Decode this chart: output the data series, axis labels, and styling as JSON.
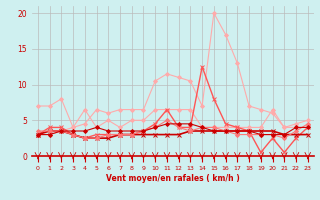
{
  "x": [
    0,
    1,
    2,
    3,
    4,
    5,
    6,
    7,
    8,
    9,
    10,
    11,
    12,
    13,
    14,
    15,
    16,
    17,
    18,
    19,
    20,
    21,
    22,
    23
  ],
  "series": [
    {
      "color": "#ffaaaa",
      "lw": 0.8,
      "marker": "D",
      "markersize": 2.0,
      "values": [
        3.0,
        3.0,
        3.5,
        4.0,
        4.5,
        6.5,
        6.0,
        6.5,
        6.5,
        6.5,
        10.5,
        11.5,
        11.0,
        10.5,
        7.0,
        20.0,
        17.0,
        13.0,
        7.0,
        6.5,
        6.0,
        4.0,
        4.5,
        5.0
      ]
    },
    {
      "color": "#ffaaaa",
      "lw": 0.8,
      "marker": "D",
      "markersize": 2.0,
      "values": [
        7.0,
        7.0,
        8.0,
        4.0,
        6.5,
        4.0,
        5.0,
        4.0,
        5.0,
        5.0,
        6.5,
        6.5,
        6.5,
        6.5,
        4.0,
        4.0,
        4.0,
        4.0,
        4.0,
        4.0,
        6.5,
        4.0,
        4.0,
        4.0
      ]
    },
    {
      "color": "#ff5555",
      "lw": 1.0,
      "marker": "x",
      "markersize": 3.0,
      "values": [
        3.0,
        4.0,
        4.0,
        3.0,
        2.5,
        3.0,
        3.0,
        3.0,
        3.0,
        3.5,
        4.5,
        6.5,
        4.0,
        4.0,
        12.5,
        8.0,
        4.5,
        4.0,
        3.5,
        0.5,
        2.5,
        0.5,
        2.5,
        4.0
      ]
    },
    {
      "color": "#cc0000",
      "lw": 1.2,
      "marker": "x",
      "markersize": 2.5,
      "values": [
        3.0,
        3.5,
        3.5,
        3.0,
        2.5,
        2.5,
        2.5,
        3.0,
        3.0,
        3.0,
        3.0,
        3.0,
        3.0,
        3.5,
        3.5,
        3.5,
        3.5,
        3.5,
        3.5,
        3.5,
        3.5,
        3.0,
        3.0,
        3.0
      ]
    },
    {
      "color": "#ff7777",
      "lw": 0.8,
      "marker": "D",
      "markersize": 2.0,
      "values": [
        3.5,
        3.5,
        3.5,
        3.0,
        2.5,
        2.5,
        3.0,
        3.0,
        3.0,
        3.5,
        4.0,
        5.0,
        4.0,
        3.5,
        4.0,
        4.0,
        3.5,
        3.0,
        3.0,
        3.0,
        3.0,
        2.5,
        3.5,
        4.5
      ]
    },
    {
      "color": "#cc0000",
      "lw": 0.8,
      "marker": "D",
      "markersize": 2.0,
      "values": [
        3.0,
        3.0,
        3.5,
        3.5,
        3.5,
        4.0,
        3.5,
        3.5,
        3.5,
        3.5,
        4.0,
        4.5,
        4.5,
        4.5,
        4.0,
        3.5,
        3.5,
        3.5,
        3.5,
        3.0,
        3.0,
        3.0,
        4.0,
        4.0
      ]
    }
  ],
  "ylim": [
    0,
    21
  ],
  "yticks": [
    0,
    5,
    10,
    15,
    20
  ],
  "xlabel": "Vent moyen/en rafales ( km/h )",
  "background_color": "#cff0f0",
  "grid_color": "#bbbbbb",
  "tick_color": "#cc0000",
  "label_color": "#cc0000"
}
